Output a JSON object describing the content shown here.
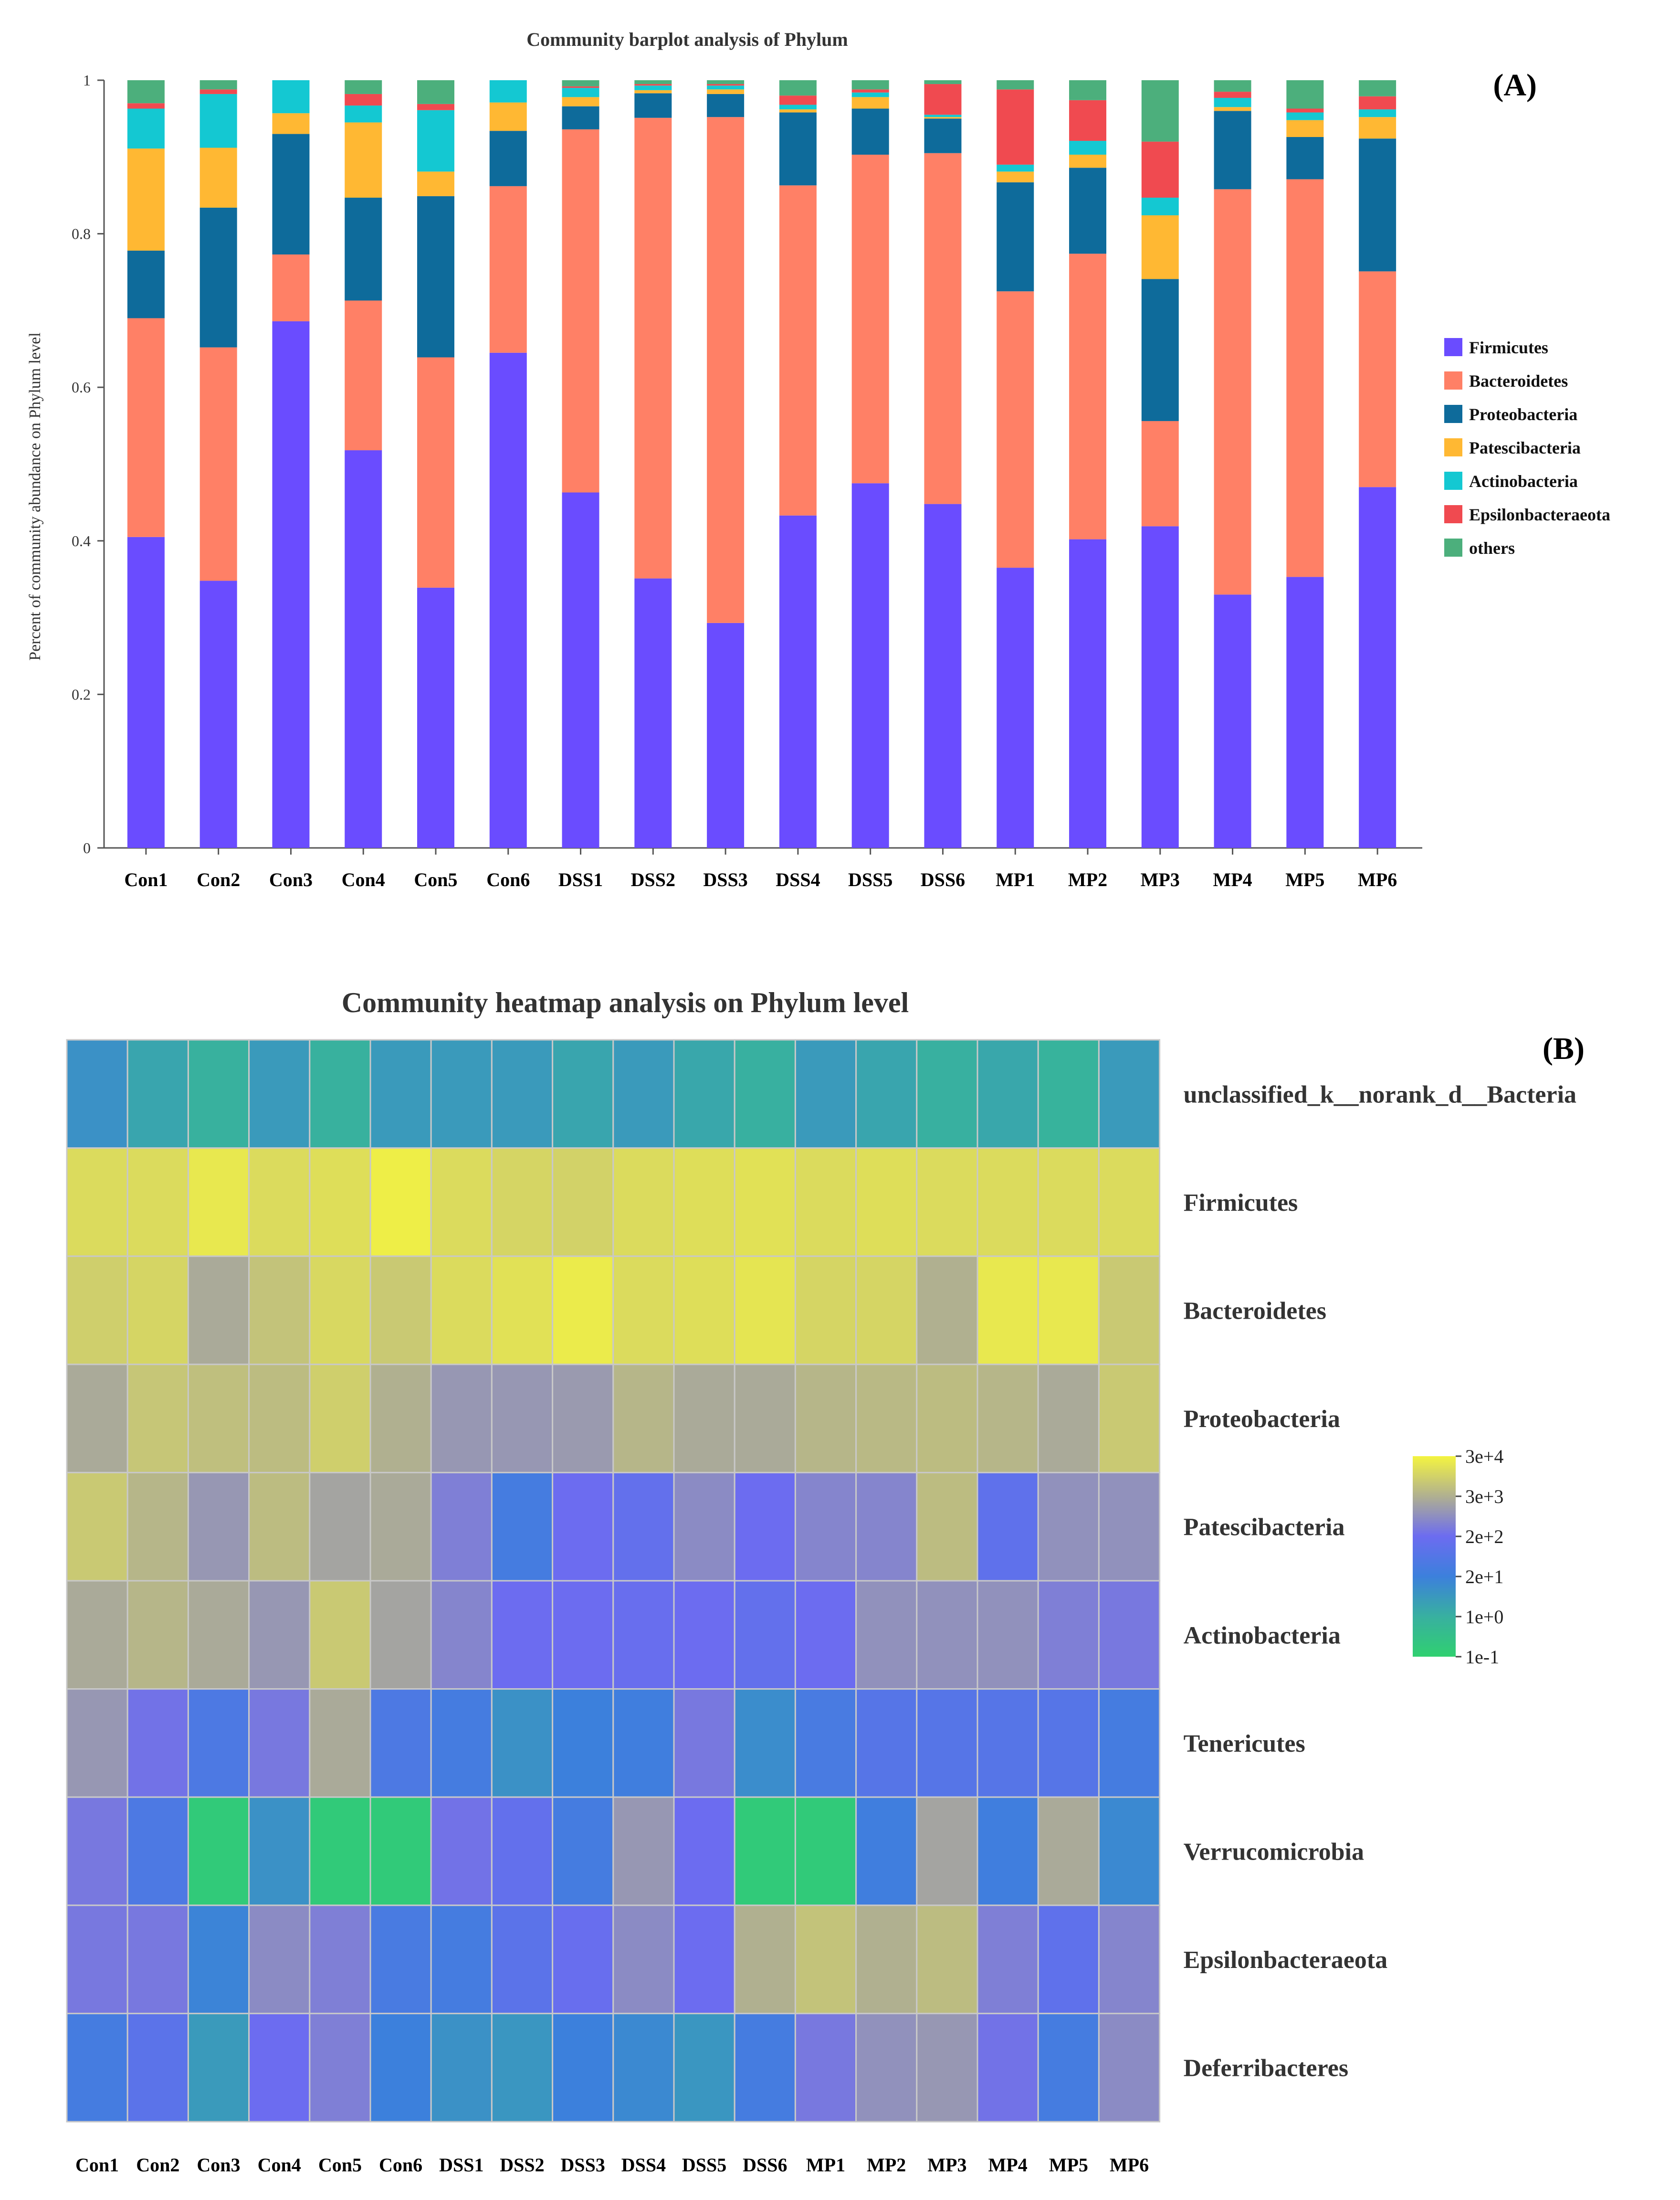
{
  "chart_data": [
    {
      "type": "bar",
      "stacked": true,
      "panel_label": "(A)",
      "title": "Community barplot analysis of Phylum",
      "xlabel": "",
      "ylabel": "Percent of community abundance on Phylum level",
      "ylim": [
        0,
        1
      ],
      "yticks": [
        "0",
        "0.2",
        "0.4",
        "0.6",
        "0.8",
        "1"
      ],
      "legend_position": "right",
      "categories": [
        "Con1",
        "Con2",
        "Con3",
        "Con4",
        "Con5",
        "Con6",
        "DSS1",
        "DSS2",
        "DSS3",
        "DSS4",
        "DSS5",
        "DSS6",
        "MP1",
        "MP2",
        "MP3",
        "MP4",
        "MP5",
        "MP6"
      ],
      "series": [
        {
          "name": "Firmicutes",
          "color": "#6a4cff",
          "values": [
            0.405,
            0.348,
            0.686,
            0.518,
            0.339,
            0.645,
            0.463,
            0.351,
            0.293,
            0.433,
            0.475,
            0.448,
            0.365,
            0.402,
            0.419,
            0.33,
            0.353,
            0.47
          ]
        },
        {
          "name": "Bacteroidetes",
          "color": "#ff8066",
          "values": [
            0.285,
            0.304,
            0.087,
            0.195,
            0.3,
            0.217,
            0.473,
            0.6,
            0.659,
            0.43,
            0.428,
            0.457,
            0.36,
            0.372,
            0.137,
            0.528,
            0.518,
            0.281
          ]
        },
        {
          "name": "Proteobacteria",
          "color": "#0e6b9b",
          "values": [
            0.088,
            0.182,
            0.157,
            0.134,
            0.21,
            0.072,
            0.03,
            0.032,
            0.03,
            0.095,
            0.06,
            0.045,
            0.142,
            0.112,
            0.185,
            0.102,
            0.055,
            0.173
          ]
        },
        {
          "name": "Patescibacteria",
          "color": "#ffb833",
          "values": [
            0.133,
            0.078,
            0.027,
            0.098,
            0.032,
            0.037,
            0.012,
            0.004,
            0.006,
            0.004,
            0.015,
            0.002,
            0.014,
            0.017,
            0.083,
            0.005,
            0.022,
            0.028
          ]
        },
        {
          "name": "Actinobacteria",
          "color": "#14c8d2",
          "values": [
            0.052,
            0.07,
            0.043,
            0.022,
            0.08,
            0.029,
            0.012,
            0.006,
            0.005,
            0.006,
            0.006,
            0.003,
            0.009,
            0.018,
            0.023,
            0.012,
            0.01,
            0.01
          ]
        },
        {
          "name": "Epsilonbacteraeota",
          "color": "#f04a50",
          "values": [
            0.007,
            0.006,
            0.0,
            0.015,
            0.008,
            0.0,
            0.002,
            0.002,
            0.002,
            0.012,
            0.004,
            0.04,
            0.098,
            0.053,
            0.073,
            0.008,
            0.005,
            0.017
          ]
        },
        {
          "name": "others",
          "color": "#4caf7c",
          "values": [
            0.03,
            0.012,
            0.0,
            0.018,
            0.031,
            0.0,
            0.008,
            0.005,
            0.005,
            0.02,
            0.012,
            0.005,
            0.012,
            0.026,
            0.08,
            0.015,
            0.037,
            0.021
          ]
        }
      ]
    },
    {
      "type": "heatmap",
      "panel_label": "(B)",
      "title": "Community heatmap analysis on Phylum level",
      "columns": [
        "Con1",
        "Con2",
        "Con3",
        "Con4",
        "Con5",
        "Con6",
        "DSS1",
        "DSS2",
        "DSS3",
        "DSS4",
        "DSS5",
        "DSS6",
        "MP1",
        "MP2",
        "MP3",
        "MP4",
        "MP5",
        "MP6"
      ],
      "rows": [
        "unclassified_k__norank_d__Bacteria",
        "Firmicutes",
        "Bacteroidetes",
        "Proteobacteria",
        "Patescibacteria",
        "Actinobacteria",
        "Tenericutes",
        "Verrucomicrobia",
        "Epsilonbacteraeota",
        "Deferribacteres"
      ],
      "colorbar_labels": [
        "3e+4",
        "3e+3",
        "2e+2",
        "2e+1",
        "1e+0",
        "1e-1"
      ],
      "colorbar_stops": [
        "#f4f440",
        "#b0b090",
        "#6c6cf0",
        "#3c80dc",
        "#38b0a0",
        "#30d070"
      ],
      "value_scale": "log10",
      "value_range": [
        -1,
        4.5
      ],
      "values_log10": [
        [
          0.8,
          0.35,
          0.05,
          0.6,
          0.05,
          0.6,
          0.6,
          0.6,
          0.35,
          0.6,
          0.3,
          0.1,
          0.6,
          0.35,
          0.1,
          0.3,
          0.0,
          0.6
        ],
        [
          4.1,
          4.1,
          4.3,
          4.1,
          4.15,
          4.4,
          4.1,
          4.0,
          3.95,
          4.1,
          4.15,
          4.2,
          4.1,
          4.15,
          4.1,
          4.1,
          4.1,
          4.1
        ],
        [
          3.9,
          4.0,
          3.3,
          3.7,
          4.05,
          3.8,
          4.1,
          4.2,
          4.35,
          4.1,
          4.15,
          4.25,
          4.0,
          4.0,
          3.4,
          4.3,
          4.3,
          3.8
        ],
        [
          3.3,
          3.75,
          3.65,
          3.6,
          3.9,
          3.4,
          3.0,
          3.0,
          3.05,
          3.5,
          3.3,
          3.3,
          3.5,
          3.55,
          3.6,
          3.5,
          3.3,
          3.8
        ],
        [
          3.8,
          3.5,
          3.0,
          3.6,
          3.2,
          3.3,
          2.6,
          1.4,
          2.3,
          2.1,
          2.8,
          2.3,
          2.7,
          2.7,
          3.6,
          2.0,
          2.9,
          2.9
        ],
        [
          3.3,
          3.5,
          3.3,
          3.0,
          3.8,
          3.2,
          2.7,
          2.3,
          2.3,
          2.2,
          2.3,
          2.1,
          2.3,
          2.9,
          2.9,
          2.9,
          2.6,
          2.5
        ],
        [
          3.0,
          2.4,
          1.6,
          2.5,
          3.3,
          1.6,
          1.4,
          0.8,
          1.2,
          1.3,
          2.5,
          0.9,
          1.5,
          1.8,
          1.8,
          1.8,
          1.8,
          1.4
        ],
        [
          2.5,
          1.6,
          -0.8,
          0.8,
          -0.8,
          -0.8,
          2.4,
          2.1,
          1.4,
          3.0,
          2.3,
          -0.8,
          -0.8,
          1.3,
          3.2,
          1.3,
          3.3,
          1.0
        ],
        [
          2.5,
          2.5,
          1.1,
          2.8,
          2.6,
          1.5,
          1.4,
          1.9,
          2.2,
          2.8,
          2.3,
          3.4,
          3.7,
          3.4,
          3.6,
          2.6,
          2.0,
          2.7
        ],
        [
          1.4,
          1.9,
          0.6,
          2.3,
          2.6,
          1.2,
          0.8,
          0.7,
          1.2,
          1.0,
          0.7,
          1.4,
          2.5,
          2.9,
          3.0,
          2.4,
          1.4,
          2.8
        ]
      ]
    }
  ]
}
